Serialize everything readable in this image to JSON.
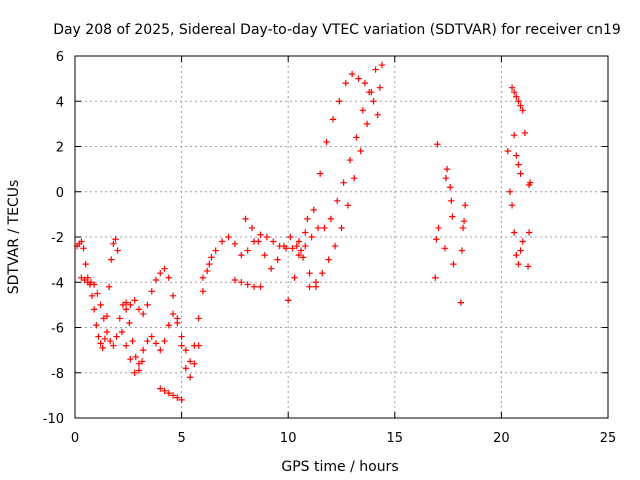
{
  "chart_data": {
    "type": "scatter",
    "title": "Day 208 of 2025, Sidereal Day-to-day VTEC variation (SDTVAR) for receiver cn19",
    "xlabel": "GPS time / hours",
    "ylabel": "SDTVAR / TECUs",
    "xlim": [
      0,
      25
    ],
    "ylim": [
      -10,
      6
    ],
    "xticks": [
      "0",
      "5",
      "10",
      "15",
      "20",
      "25"
    ],
    "yticks": [
      "-10",
      "-8",
      "-6",
      "-4",
      "-2",
      "0",
      "2",
      "4",
      "6"
    ],
    "grid": true,
    "marker": "+",
    "color": "#ff0000",
    "series": [
      {
        "name": "SDTVAR",
        "x": [
          0.1,
          0.2,
          0.3,
          0.4,
          0.5,
          0.6,
          0.7,
          0.8,
          0.9,
          1.0,
          1.1,
          1.2,
          1.3,
          1.4,
          1.5,
          1.6,
          1.7,
          1.8,
          1.9,
          2.0,
          0.3,
          0.45,
          0.6,
          0.75,
          0.9,
          1.05,
          1.2,
          1.35,
          1.5,
          1.65,
          1.8,
          1.95,
          2.1,
          2.25,
          2.4,
          2.55,
          2.7,
          2.85,
          3.0,
          3.15,
          2.4,
          2.6,
          2.8,
          3.0,
          3.2,
          3.4,
          3.6,
          3.8,
          4.0,
          4.2,
          4.4,
          4.6,
          4.8,
          5.0,
          5.2,
          5.4,
          5.6,
          5.8,
          2.2,
          2.4,
          2.6,
          2.8,
          3.0,
          3.2,
          3.4,
          3.6,
          3.8,
          4.0,
          4.2,
          4.4,
          4.6,
          4.8,
          5.0,
          5.2,
          5.4,
          5.6,
          5.8,
          6.0,
          6.2,
          6.4,
          4.0,
          4.2,
          4.4,
          4.6,
          4.8,
          5.0,
          6.0,
          6.3,
          6.6,
          6.9,
          7.2,
          7.5,
          7.8,
          8.1,
          8.4,
          8.7,
          9.0,
          9.3,
          9.6,
          9.9,
          10.2,
          10.5,
          10.8,
          8.0,
          8.3,
          8.6,
          8.9,
          9.2,
          9.5,
          9.8,
          10.1,
          10.4,
          10.7,
          11.0,
          11.3,
          7.5,
          7.8,
          8.1,
          8.4,
          8.7,
          10.0,
          10.3,
          10.6,
          10.9,
          11.2,
          11.5,
          11.8,
          12.1,
          12.4,
          12.7,
          13.0,
          13.3,
          13.6,
          13.9,
          14.2,
          11.0,
          11.3,
          11.6,
          11.9,
          12.2,
          12.5,
          12.8,
          13.1,
          13.4,
          13.7,
          14.0,
          14.3,
          10.5,
          10.8,
          11.1,
          11.4,
          11.7,
          12.0,
          12.3,
          12.6,
          12.9,
          13.2,
          13.5,
          13.8,
          14.1,
          14.4,
          16.9,
          16.95,
          17.0,
          17.05,
          17.35,
          17.4,
          17.45,
          17.6,
          17.65,
          17.7,
          17.75,
          18.1,
          18.15,
          18.2,
          18.25,
          18.3,
          20.3,
          20.4,
          20.5,
          20.6,
          20.7,
          20.8,
          20.9,
          21.0,
          20.5,
          20.6,
          20.7,
          20.8,
          20.9,
          21.0,
          21.1,
          20.6,
          20.7,
          20.8,
          20.9,
          21.3,
          21.35,
          21.3,
          21.25
        ],
        "y": [
          -2.4,
          -2.3,
          -2.2,
          -2.5,
          -3.2,
          -3.8,
          -4.1,
          -4.6,
          -5.2,
          -5.9,
          -6.4,
          -6.7,
          -6.9,
          -6.5,
          -5.5,
          -4.2,
          -3.0,
          -2.3,
          -2.1,
          -2.6,
          -3.8,
          -3.9,
          -4.0,
          -4.0,
          -4.1,
          -4.5,
          -5.0,
          -5.6,
          -6.2,
          -6.6,
          -6.8,
          -6.4,
          -5.6,
          -5.0,
          -5.2,
          -5.8,
          -6.6,
          -7.3,
          -7.9,
          -7.5,
          -4.9,
          -5.0,
          -4.8,
          -5.2,
          -5.4,
          -5.0,
          -4.4,
          -3.9,
          -3.6,
          -3.4,
          -3.8,
          -4.6,
          -5.6,
          -6.8,
          -7.8,
          -8.2,
          -7.6,
          -6.8,
          -6.2,
          -6.8,
          -7.4,
          -8.0,
          -7.6,
          -7.0,
          -6.6,
          -6.4,
          -6.7,
          -7.0,
          -6.6,
          -5.9,
          -5.4,
          -5.8,
          -6.4,
          -7.0,
          -7.5,
          -6.8,
          -5.6,
          -4.4,
          -3.5,
          -2.9,
          -8.7,
          -8.8,
          -8.9,
          -9.0,
          -9.1,
          -9.2,
          -3.8,
          -3.2,
          -2.6,
          -2.2,
          -2.0,
          -2.3,
          -2.8,
          -2.6,
          -2.2,
          -1.9,
          -2.0,
          -2.2,
          -2.4,
          -2.5,
          -2.5,
          -2.2,
          -1.8,
          -1.2,
          -1.6,
          -2.2,
          -2.8,
          -3.4,
          -3.0,
          -2.4,
          -2.0,
          -2.4,
          -2.9,
          -3.6,
          -4.2,
          -3.9,
          -4.0,
          -4.1,
          -4.2,
          -4.2,
          -4.8,
          -3.8,
          -2.6,
          -1.2,
          -0.8,
          0.8,
          2.2,
          3.2,
          4.0,
          4.8,
          5.2,
          5.0,
          4.8,
          4.4,
          3.4,
          -4.2,
          -4.0,
          -3.6,
          -3.0,
          -2.4,
          -1.6,
          -0.6,
          0.6,
          1.8,
          3.0,
          4.0,
          4.6,
          -2.8,
          -2.4,
          -2.0,
          -1.6,
          -1.6,
          -1.2,
          -0.4,
          0.4,
          1.4,
          2.4,
          3.6,
          4.4,
          5.4,
          5.6,
          -3.8,
          -2.1,
          2.1,
          -1.6,
          -2.5,
          0.6,
          1.0,
          0.2,
          -0.4,
          -1.1,
          -3.2,
          -4.9,
          -2.6,
          -1.6,
          -1.3,
          -0.6,
          1.8,
          0.0,
          -0.6,
          -1.8,
          -2.8,
          -3.2,
          -2.6,
          -2.2,
          4.6,
          4.4,
          4.2,
          4.0,
          3.8,
          3.6,
          2.6,
          2.5,
          1.6,
          1.2,
          0.8,
          0.3,
          0.4,
          -1.8,
          -3.3
        ]
      }
    ]
  }
}
